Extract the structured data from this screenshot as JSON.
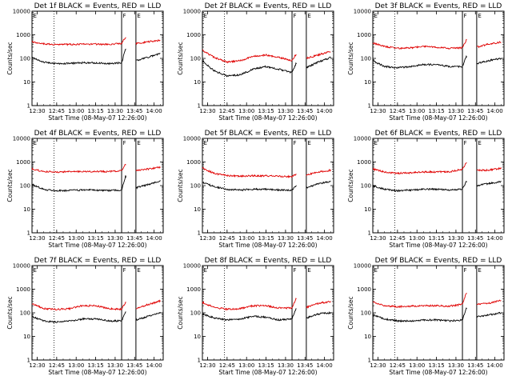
{
  "colors": {
    "events": "#000000",
    "lld": "#e00000",
    "frame": "#000000",
    "background": "#ffffff"
  },
  "chart_data": [
    {
      "type": "line",
      "title": "Det 1f BLACK = Events, RED = LLD",
      "xlabel": "Start Time (08-May-07 12:26:00)",
      "ylabel": "Counts/sec",
      "yscale": "log",
      "xlim": [
        "12:26",
        "14:07"
      ],
      "ylim": [
        1,
        10000
      ],
      "x_ticks": [
        "12:30",
        "12:45",
        "13:00",
        "13:15",
        "13:30",
        "13:45",
        "14:00"
      ],
      "y_ticks": [
        "1",
        "10",
        "100",
        "1000",
        "10000"
      ],
      "markers": {
        "dotted": [
          "12:43"
        ],
        "solid": [
          "13:35",
          "13:46"
        ],
        "labels": [
          "E",
          "F",
          "E"
        ]
      },
      "series": [
        {
          "color": "#000000",
          "x": [
            "12:26",
            "12:35",
            "12:45",
            "12:55",
            "13:05",
            "13:15",
            "13:25",
            "13:35",
            "13:38",
            "13:46",
            "13:55",
            "14:05"
          ],
          "values": [
            110,
            70,
            60,
            62,
            65,
            65,
            60,
            65,
            250,
            80,
            110,
            160
          ]
        },
        {
          "color": "#e00000",
          "x": [
            "12:26",
            "12:35",
            "12:45",
            "12:55",
            "13:05",
            "13:15",
            "13:25",
            "13:35",
            "13:38",
            "13:46",
            "13:55",
            "14:05"
          ],
          "values": [
            500,
            420,
            380,
            390,
            400,
            400,
            390,
            430,
            800,
            420,
            500,
            600
          ]
        }
      ]
    },
    {
      "type": "line",
      "title": "Det 2f BLACK = Events, RED = LLD",
      "xlabel": "Start Time (08-May-07 12:26:00)",
      "ylabel": "Counts/sec",
      "yscale": "log",
      "xlim": [
        "12:26",
        "14:07"
      ],
      "ylim": [
        1,
        10000
      ],
      "x_ticks": [
        "12:30",
        "12:45",
        "13:00",
        "13:15",
        "13:30",
        "13:45",
        "14:00"
      ],
      "y_ticks": [
        "1",
        "10",
        "100",
        "1000",
        "10000"
      ],
      "markers": {
        "dotted": [
          "12:43"
        ],
        "solid": [
          "13:35",
          "13:46"
        ],
        "labels": [
          "E",
          "F",
          "E"
        ]
      },
      "series": [
        {
          "color": "#000000",
          "x": [
            "12:26",
            "12:35",
            "12:45",
            "12:55",
            "13:05",
            "13:15",
            "13:25",
            "13:35",
            "13:38",
            "13:46",
            "13:55",
            "14:05"
          ],
          "values": [
            80,
            30,
            18,
            20,
            35,
            45,
            35,
            25,
            60,
            40,
            70,
            110
          ]
        },
        {
          "color": "#e00000",
          "x": [
            "12:26",
            "12:35",
            "12:45",
            "12:55",
            "13:05",
            "13:15",
            "13:25",
            "13:35",
            "13:38",
            "13:46",
            "13:55",
            "14:05"
          ],
          "values": [
            220,
            110,
            70,
            80,
            120,
            140,
            110,
            80,
            150,
            100,
            140,
            200
          ]
        }
      ]
    },
    {
      "type": "line",
      "title": "Det 3f BLACK = Events, RED = LLD",
      "xlabel": "Start Time (08-May-07 12:26:00)",
      "ylabel": "Counts/sec",
      "yscale": "log",
      "xlim": [
        "12:26",
        "14:07"
      ],
      "ylim": [
        1,
        10000
      ],
      "x_ticks": [
        "12:30",
        "12:45",
        "13:00",
        "13:15",
        "13:30",
        "13:45",
        "14:00"
      ],
      "y_ticks": [
        "1",
        "10",
        "100",
        "1000",
        "10000"
      ],
      "markers": {
        "dotted": [
          "12:43"
        ],
        "solid": [
          "13:35",
          "13:46"
        ],
        "labels": [
          "E",
          "F",
          "E"
        ]
      },
      "series": [
        {
          "color": "#000000",
          "x": [
            "12:26",
            "12:35",
            "12:45",
            "12:55",
            "13:05",
            "13:15",
            "13:25",
            "13:35",
            "13:38",
            "13:46",
            "13:55",
            "14:05"
          ],
          "values": [
            80,
            45,
            40,
            45,
            55,
            55,
            45,
            45,
            120,
            60,
            80,
            100
          ]
        },
        {
          "color": "#e00000",
          "x": [
            "12:26",
            "12:35",
            "12:45",
            "12:55",
            "13:05",
            "13:15",
            "13:25",
            "13:35",
            "13:38",
            "13:46",
            "13:55",
            "14:05"
          ],
          "values": [
            450,
            320,
            270,
            280,
            330,
            300,
            270,
            280,
            600,
            300,
            400,
            500
          ]
        }
      ]
    },
    {
      "type": "line",
      "title": "Det 4f BLACK = Events, RED = LLD",
      "xlabel": "Start Time (08-May-07 12:26:00)",
      "ylabel": "Counts/sec",
      "yscale": "log",
      "xlim": [
        "12:26",
        "14:07"
      ],
      "ylim": [
        1,
        10000
      ],
      "x_ticks": [
        "12:30",
        "12:45",
        "13:00",
        "13:15",
        "13:30",
        "13:45",
        "14:00"
      ],
      "y_ticks": [
        "1",
        "10",
        "100",
        "1000",
        "10000"
      ],
      "markers": {
        "dotted": [
          "12:43"
        ],
        "solid": [
          "13:35",
          "13:46"
        ],
        "labels": [
          "E",
          "F",
          "E"
        ]
      },
      "series": [
        {
          "color": "#000000",
          "x": [
            "12:26",
            "12:35",
            "12:45",
            "12:55",
            "13:05",
            "13:15",
            "13:25",
            "13:35",
            "13:38",
            "13:46",
            "13:55",
            "14:05"
          ],
          "values": [
            110,
            70,
            60,
            62,
            65,
            65,
            62,
            65,
            250,
            80,
            110,
            160
          ]
        },
        {
          "color": "#e00000",
          "x": [
            "12:26",
            "12:35",
            "12:45",
            "12:55",
            "13:05",
            "13:15",
            "13:25",
            "13:35",
            "13:38",
            "13:46",
            "13:55",
            "14:05"
          ],
          "values": [
            500,
            400,
            380,
            390,
            400,
            400,
            390,
            430,
            800,
            420,
            500,
            600
          ]
        }
      ]
    },
    {
      "type": "line",
      "title": "Det 5f BLACK = Events, RED = LLD",
      "xlabel": "Start Time (08-May-07 12:26:00)",
      "ylabel": "Counts/sec",
      "yscale": "log",
      "xlim": [
        "12:26",
        "14:07"
      ],
      "ylim": [
        1,
        10000
      ],
      "x_ticks": [
        "12:30",
        "12:45",
        "13:00",
        "13:15",
        "13:30",
        "13:45",
        "14:00"
      ],
      "y_ticks": [
        "1",
        "10",
        "100",
        "1000",
        "10000"
      ],
      "markers": {
        "dotted": [
          "12:43"
        ],
        "solid": [
          "13:35",
          "13:46"
        ],
        "labels": [
          "E",
          "F",
          "E"
        ]
      },
      "series": [
        {
          "color": "#000000",
          "x": [
            "12:26",
            "12:35",
            "12:45",
            "12:55",
            "13:05",
            "13:15",
            "13:25",
            "13:35",
            "13:38",
            "13:46",
            "13:55",
            "14:05"
          ],
          "values": [
            140,
            90,
            70,
            65,
            70,
            70,
            65,
            65,
            100,
            80,
            120,
            150
          ]
        },
        {
          "color": "#e00000",
          "x": [
            "12:26",
            "12:35",
            "12:45",
            "12:55",
            "13:05",
            "13:15",
            "13:25",
            "13:35",
            "13:38",
            "13:46",
            "13:55",
            "14:05"
          ],
          "values": [
            550,
            330,
            270,
            250,
            260,
            260,
            250,
            240,
            300,
            280,
            380,
            450
          ]
        }
      ]
    },
    {
      "type": "line",
      "title": "Det 6f BLACK = Events, RED = LLD",
      "xlabel": "Start Time (08-May-07 12:26:00)",
      "ylabel": "Counts/sec",
      "yscale": "log",
      "xlim": [
        "12:26",
        "14:07"
      ],
      "ylim": [
        1,
        10000
      ],
      "x_ticks": [
        "12:30",
        "12:45",
        "13:00",
        "13:15",
        "13:30",
        "13:45",
        "14:00"
      ],
      "y_ticks": [
        "1",
        "10",
        "100",
        "1000",
        "10000"
      ],
      "markers": {
        "dotted": [
          "12:43"
        ],
        "solid": [
          "13:35",
          "13:46"
        ],
        "labels": [
          "E",
          "F",
          "E"
        ]
      },
      "series": [
        {
          "color": "#000000",
          "x": [
            "12:26",
            "12:35",
            "12:45",
            "12:55",
            "13:05",
            "13:15",
            "13:25",
            "13:35",
            "13:38",
            "13:46",
            "13:55",
            "14:05"
          ],
          "values": [
            100,
            70,
            60,
            65,
            70,
            70,
            65,
            70,
            150,
            100,
            120,
            150
          ]
        },
        {
          "color": "#e00000",
          "x": [
            "12:26",
            "12:35",
            "12:45",
            "12:55",
            "13:05",
            "13:15",
            "13:25",
            "13:35",
            "13:38",
            "13:46",
            "13:55",
            "14:05"
          ],
          "values": [
            500,
            380,
            330,
            350,
            380,
            380,
            380,
            500,
            900,
            450,
            450,
            550
          ]
        }
      ]
    },
    {
      "type": "line",
      "title": "Det 7f BLACK = Events, RED = LLD",
      "xlabel": "Start Time (08-May-07 12:26:00)",
      "ylabel": "Counts/sec",
      "yscale": "log",
      "xlim": [
        "12:26",
        "14:07"
      ],
      "ylim": [
        1,
        10000
      ],
      "x_ticks": [
        "12:30",
        "12:45",
        "13:00",
        "13:15",
        "13:30",
        "13:45",
        "14:00"
      ],
      "y_ticks": [
        "1",
        "10",
        "100",
        "1000",
        "10000"
      ],
      "markers": {
        "dotted": [
          "12:43"
        ],
        "solid": [
          "13:35",
          "13:46"
        ],
        "labels": [
          "E",
          "F",
          "E"
        ]
      },
      "series": [
        {
          "color": "#000000",
          "x": [
            "12:26",
            "12:35",
            "12:45",
            "12:55",
            "13:05",
            "13:15",
            "13:25",
            "13:35",
            "13:38",
            "13:46",
            "13:55",
            "14:05"
          ],
          "values": [
            70,
            45,
            40,
            45,
            55,
            55,
            45,
            45,
            110,
            50,
            70,
            100
          ]
        },
        {
          "color": "#e00000",
          "x": [
            "12:26",
            "12:35",
            "12:45",
            "12:55",
            "13:05",
            "13:15",
            "13:25",
            "13:35",
            "13:38",
            "13:46",
            "13:55",
            "14:05"
          ],
          "values": [
            250,
            150,
            140,
            150,
            200,
            200,
            150,
            140,
            280,
            150,
            220,
            320
          ]
        }
      ]
    },
    {
      "type": "line",
      "title": "Det 8f BLACK = Events, RED = LLD",
      "xlabel": "Start Time (08-May-07 12:26:00)",
      "ylabel": "Counts/sec",
      "yscale": "log",
      "xlim": [
        "12:26",
        "14:07"
      ],
      "ylim": [
        1,
        10000
      ],
      "x_ticks": [
        "12:30",
        "12:45",
        "13:00",
        "13:15",
        "13:30",
        "13:45",
        "14:00"
      ],
      "y_ticks": [
        "1",
        "10",
        "100",
        "1000",
        "10000"
      ],
      "markers": {
        "dotted": [
          "12:43"
        ],
        "solid": [
          "13:35",
          "13:46"
        ],
        "labels": [
          "E",
          "F",
          "E"
        ]
      },
      "series": [
        {
          "color": "#000000",
          "x": [
            "12:26",
            "12:35",
            "12:45",
            "12:55",
            "13:05",
            "13:15",
            "13:25",
            "13:35",
            "13:38",
            "13:46",
            "13:55",
            "14:05"
          ],
          "values": [
            90,
            60,
            50,
            55,
            70,
            65,
            50,
            55,
            150,
            60,
            90,
            100
          ]
        },
        {
          "color": "#e00000",
          "x": [
            "12:26",
            "12:35",
            "12:45",
            "12:55",
            "13:05",
            "13:15",
            "13:25",
            "13:35",
            "13:38",
            "13:46",
            "13:55",
            "14:05"
          ],
          "values": [
            280,
            170,
            140,
            150,
            200,
            200,
            160,
            160,
            400,
            170,
            250,
            300
          ]
        }
      ]
    },
    {
      "type": "line",
      "title": "Det 9f BLACK = Events, RED = LLD",
      "xlabel": "Start Time (08-May-07 12:26:00)",
      "ylabel": "Counts/sec",
      "yscale": "log",
      "xlim": [
        "12:26",
        "14:07"
      ],
      "ylim": [
        1,
        10000
      ],
      "x_ticks": [
        "12:30",
        "12:45",
        "13:00",
        "13:15",
        "13:30",
        "13:45",
        "14:00"
      ],
      "y_ticks": [
        "1",
        "10",
        "100",
        "1000",
        "10000"
      ],
      "markers": {
        "dotted": [
          "12:43"
        ],
        "solid": [
          "13:35",
          "13:46"
        ],
        "labels": [
          "E",
          "F",
          "E"
        ]
      },
      "series": [
        {
          "color": "#000000",
          "x": [
            "12:26",
            "12:35",
            "12:45",
            "12:55",
            "13:05",
            "13:15",
            "13:25",
            "13:35",
            "13:38",
            "13:46",
            "13:55",
            "14:05"
          ],
          "values": [
            80,
            55,
            45,
            45,
            50,
            50,
            45,
            50,
            160,
            70,
            80,
            100
          ]
        },
        {
          "color": "#e00000",
          "x": [
            "12:26",
            "12:35",
            "12:45",
            "12:55",
            "13:05",
            "13:15",
            "13:25",
            "13:35",
            "13:38",
            "13:46",
            "13:55",
            "14:05"
          ],
          "values": [
            280,
            200,
            180,
            190,
            200,
            200,
            190,
            230,
            700,
            230,
            250,
            350
          ]
        }
      ]
    }
  ]
}
